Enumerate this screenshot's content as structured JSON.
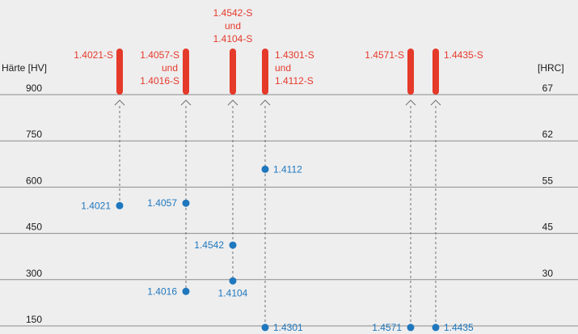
{
  "chart_data": {
    "type": "scatter",
    "left_axis_label": "Härte [HV]",
    "right_axis_label": "[HRC]",
    "hv_ticks": [
      "900",
      "750",
      "600",
      "450",
      "300",
      "150"
    ],
    "hrc_ticks": [
      "67",
      "62",
      "55",
      "45",
      "30",
      ""
    ],
    "hv_values": [
      900,
      750,
      600,
      450,
      300,
      150
    ],
    "ylim": [
      140,
      910
    ],
    "steel_markers": [
      {
        "id": "m1",
        "lines": [
          "1.4021-S"
        ],
        "points": [
          "p1"
        ]
      },
      {
        "id": "m2",
        "lines": [
          "1.4057-S",
          "und",
          "1.4016-S"
        ],
        "points": [
          "p2",
          "p3"
        ]
      },
      {
        "id": "m3",
        "lines": [
          "1.4542-S",
          "und",
          "1.4104-S"
        ],
        "points": [
          "p4",
          "p5"
        ]
      },
      {
        "id": "m4",
        "lines": [
          "1.4301-S",
          "und",
          "1.4112-S"
        ],
        "points": [
          "p6",
          "p7"
        ]
      },
      {
        "id": "m5",
        "lines": [
          "1.4571-S"
        ],
        "points": [
          "p8"
        ]
      },
      {
        "id": "m6",
        "lines": [
          "1.4435-S"
        ],
        "points": [
          "p9"
        ]
      }
    ],
    "points": [
      {
        "id": "p1",
        "label": "1.4021",
        "hardness": 540,
        "marker": "m1",
        "label_side": "left"
      },
      {
        "id": "p2",
        "label": "1.4057",
        "hardness": 548,
        "marker": "m2",
        "label_side": "left"
      },
      {
        "id": "p3",
        "label": "1.4016",
        "hardness": 262,
        "marker": "m2",
        "label_side": "left"
      },
      {
        "id": "p4",
        "label": "1.4542",
        "hardness": 412,
        "marker": "m3",
        "label_side": "left"
      },
      {
        "id": "p5",
        "label": "1.4104",
        "hardness": 296,
        "marker": "m3",
        "label_side": "below"
      },
      {
        "id": "p6",
        "label": "1.4112",
        "hardness": 658,
        "marker": "m4",
        "label_side": "right"
      },
      {
        "id": "p7",
        "label": "1.4301",
        "hardness": 145,
        "marker": "m4",
        "label_side": "right"
      },
      {
        "id": "p8",
        "label": "1.4571",
        "hardness": 145,
        "marker": "m5",
        "label_side": "left"
      },
      {
        "id": "p9",
        "label": "1.4435",
        "hardness": 145,
        "marker": "m6",
        "label_side": "right"
      }
    ],
    "colors": {
      "background": "#eeeeef",
      "grid": "#8c8c8c",
      "bar": "#e53a2a",
      "point": "#1f77bd",
      "dashed": "#707070",
      "axis_text": "#1a1a1a"
    }
  }
}
